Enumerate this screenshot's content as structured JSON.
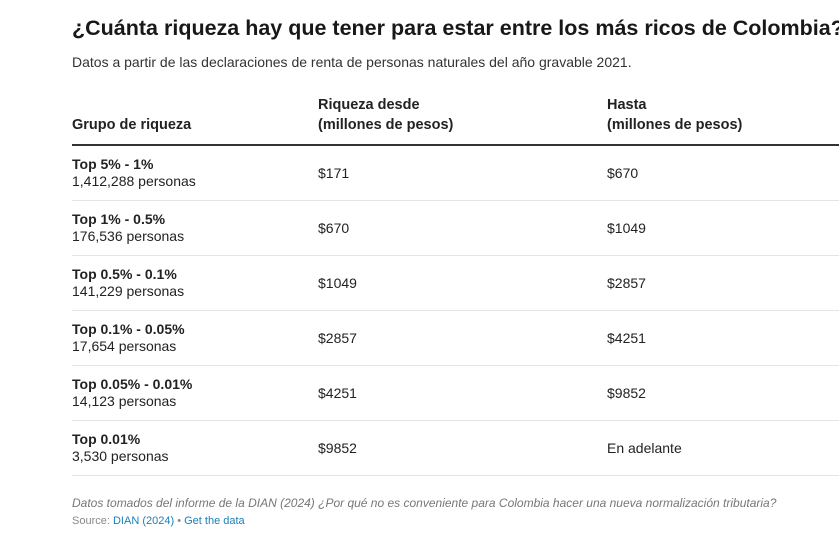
{
  "title": "¿Cuánta riqueza hay que tener para estar entre los más ricos de Colombia?",
  "subtitle": "Datos a partir de las declaraciones de renta de personas naturales del año gravable 2021.",
  "table": {
    "headers": [
      "Grupo de riqueza",
      "Riqueza desde\n(millones de pesos)",
      "Hasta\n(millones de pesos)"
    ],
    "rows": [
      {
        "group": "Top 5% - 1%",
        "count": "1,412,288 personas",
        "from": "$171",
        "to": "$670"
      },
      {
        "group": "Top 1% - 0.5%",
        "count": "176,536 personas",
        "from": "$670",
        "to": "$1049"
      },
      {
        "group": "Top 0.5% - 0.1%",
        "count": "141,229 personas",
        "from": "$1049",
        "to": "$2857"
      },
      {
        "group": "Top 0.1% - 0.05%",
        "count": "17,654 personas",
        "from": "$2857",
        "to": "$4251"
      },
      {
        "group": "Top 0.05% - 0.01%",
        "count": "14,123 personas",
        "from": "$4251",
        "to": "$9852"
      },
      {
        "group": "Top 0.01%",
        "count": "3,530 personas",
        "from": "$9852",
        "to": "En adelante"
      }
    ]
  },
  "notes": "Datos tomados del informe de la DIAN (2024) ¿Por qué no es conveniente para Colombia hacer una nueva normalización tributaria?",
  "source": {
    "label": "Source:",
    "link": "DIAN (2024)",
    "separator": "•",
    "get_data": "Get the data"
  },
  "colors": {
    "link": "#1a7fb8",
    "rule": "#333333"
  }
}
